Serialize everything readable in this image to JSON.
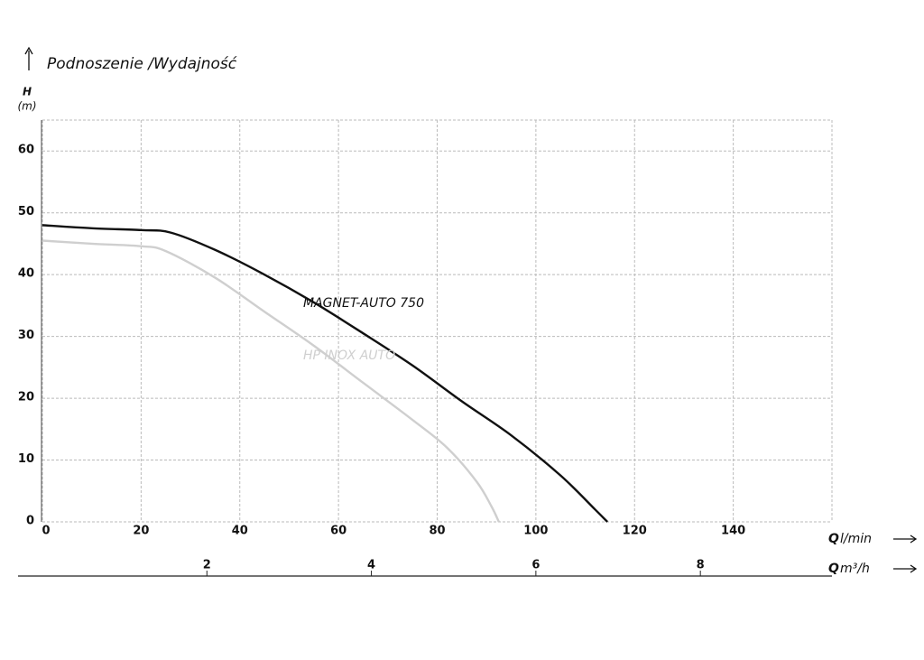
{
  "chart_data": {
    "type": "line",
    "title": "Podnoszenie /Wydajność",
    "y_label": "H",
    "y_unit": "(m)",
    "x_label": "Q",
    "x_unit": "l/min",
    "x2_label": "Q",
    "x2_unit": "m³/h",
    "xlim": [
      0,
      160
    ],
    "xticks": [
      0,
      20,
      40,
      60,
      80,
      100,
      120,
      140
    ],
    "x2lim": [
      0,
      9.6
    ],
    "x2ticks": [
      2,
      4,
      6,
      8
    ],
    "ylim": [
      0,
      65
    ],
    "yticks": [
      0,
      10,
      20,
      30,
      40,
      50,
      60
    ],
    "grid": true,
    "series": [
      {
        "name": "MAGNET-AUTO 750",
        "color": "#111111",
        "x": [
          0,
          10,
          20,
          26,
          35,
          45,
          55,
          65,
          75,
          85,
          95,
          105,
          112,
          114.5
        ],
        "values": [
          48,
          47.5,
          47.2,
          46.8,
          44,
          40,
          35.5,
          30.5,
          25.3,
          19.5,
          14,
          7.5,
          2,
          0
        ]
      },
      {
        "name": "HP INOX AUTO",
        "color": "#cfcfcf",
        "x": [
          0,
          10,
          20,
          25,
          35,
          45,
          55,
          65,
          75,
          82,
          88,
          91,
          92.5
        ],
        "values": [
          45.5,
          45,
          44.6,
          43.8,
          39.5,
          34,
          28.5,
          22.5,
          16.5,
          12,
          6.5,
          2.5,
          0
        ]
      }
    ]
  }
}
